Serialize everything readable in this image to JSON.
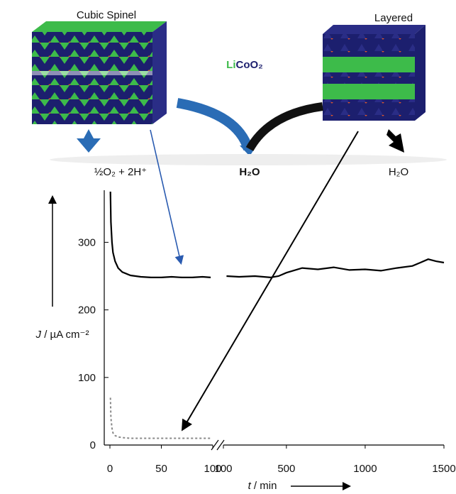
{
  "chart_data": {
    "type": "line",
    "compound": {
      "li": "Li",
      "rest": "CoO₂"
    },
    "products": {
      "spinel": "½O₂ + 2H⁺",
      "center": "H₂O",
      "layered": "H₂O"
    },
    "ylabel": {
      "symbol": "J",
      "unit": " / µA cm⁻²"
    },
    "xlabel": {
      "symbol": "t",
      "unit": " / min"
    },
    "ylim": [
      0,
      375
    ],
    "yticks": [
      0,
      100,
      200,
      300
    ],
    "axis_break": 100,
    "x_segments": [
      {
        "xlim": [
          0,
          100
        ],
        "xticks": [
          0,
          50,
          100
        ]
      },
      {
        "xlim": [
          100,
          1500
        ],
        "xticks": [
          100,
          500,
          1000,
          1500
        ]
      }
    ],
    "series": [
      {
        "name": "Cubic Spinel",
        "color": "#000000",
        "style": "solid",
        "x": [
          0.5,
          1,
          2,
          3,
          5,
          8,
          12,
          20,
          30,
          40,
          50,
          60,
          70,
          80,
          90,
          98,
          100,
          120,
          200,
          300,
          400,
          450,
          500,
          600,
          700,
          800,
          900,
          1000,
          1100,
          1200,
          1300,
          1350,
          1400,
          1450,
          1500
        ],
        "values": [
          375,
          330,
          300,
          285,
          272,
          262,
          256,
          251,
          249,
          248,
          248,
          249,
          248,
          248,
          249,
          248,
          null,
          250,
          249,
          250,
          248,
          250,
          255,
          262,
          260,
          263,
          259,
          260,
          258,
          262,
          265,
          270,
          275,
          272,
          270
        ]
      },
      {
        "name": "Layered",
        "color": "#888888",
        "style": "dotted",
        "x": [
          0.5,
          1,
          2,
          3,
          5,
          8,
          12,
          20,
          30,
          40,
          50,
          60,
          70,
          80,
          90,
          98
        ],
        "values": [
          70,
          40,
          25,
          18,
          14,
          12,
          11,
          10,
          10,
          10,
          10,
          10,
          10,
          10,
          10,
          10
        ]
      }
    ]
  }
}
